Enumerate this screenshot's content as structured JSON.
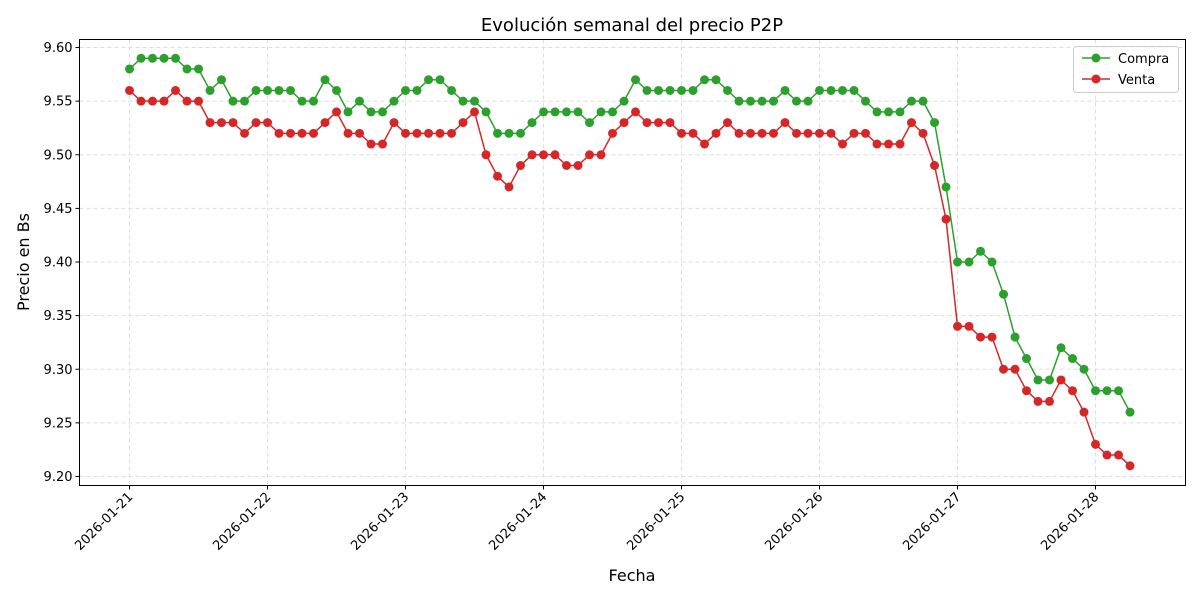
{
  "chart_data": {
    "type": "line",
    "title": "Evolución semanal del precio P2P",
    "xlabel": "Fecha",
    "ylabel": "Precio en Bs",
    "xlim": [
      "2026-01-20 15:18",
      "2026-01-28 15:39"
    ],
    "ylim": [
      9.1916,
      9.6075
    ],
    "grid": true,
    "legend": "top-right",
    "xticks": [
      "2026-01-21",
      "2026-01-22",
      "2026-01-23",
      "2026-01-24",
      "2026-01-25",
      "2026-01-26",
      "2026-01-27",
      "2026-01-28"
    ],
    "yticks": [
      "9.20",
      "9.25",
      "9.30",
      "9.35",
      "9.40",
      "9.45",
      "9.50",
      "9.55",
      "9.60"
    ],
    "x": [
      "2026-01-21 00:00",
      "2026-01-21 02:00",
      "2026-01-21 04:00",
      "2026-01-21 06:00",
      "2026-01-21 08:00",
      "2026-01-21 10:00",
      "2026-01-21 12:00",
      "2026-01-21 14:00",
      "2026-01-21 16:00",
      "2026-01-21 18:00",
      "2026-01-21 20:00",
      "2026-01-21 22:00",
      "2026-01-22 00:00",
      "2026-01-22 02:00",
      "2026-01-22 04:00",
      "2026-01-22 06:00",
      "2026-01-22 08:00",
      "2026-01-22 10:00",
      "2026-01-22 12:00",
      "2026-01-22 14:00",
      "2026-01-22 16:00",
      "2026-01-22 18:00",
      "2026-01-22 20:00",
      "2026-01-22 22:00",
      "2026-01-23 00:00",
      "2026-01-23 02:00",
      "2026-01-23 04:00",
      "2026-01-23 06:00",
      "2026-01-23 08:00",
      "2026-01-23 10:00",
      "2026-01-23 12:00",
      "2026-01-23 14:00",
      "2026-01-23 16:00",
      "2026-01-23 18:00",
      "2026-01-23 20:00",
      "2026-01-23 22:00",
      "2026-01-24 00:00",
      "2026-01-24 02:00",
      "2026-01-24 04:00",
      "2026-01-24 06:00",
      "2026-01-24 08:00",
      "2026-01-24 10:00",
      "2026-01-24 12:00",
      "2026-01-24 14:00",
      "2026-01-24 16:00",
      "2026-01-24 18:00",
      "2026-01-24 20:00",
      "2026-01-24 22:00",
      "2026-01-25 00:00",
      "2026-01-25 02:00",
      "2026-01-25 04:00",
      "2026-01-25 06:00",
      "2026-01-25 08:00",
      "2026-01-25 10:00",
      "2026-01-25 12:00",
      "2026-01-25 14:00",
      "2026-01-25 16:00",
      "2026-01-25 18:00",
      "2026-01-25 20:00",
      "2026-01-25 22:00",
      "2026-01-26 00:00",
      "2026-01-26 02:00",
      "2026-01-26 04:00",
      "2026-01-26 06:00",
      "2026-01-26 08:00",
      "2026-01-26 10:00",
      "2026-01-26 12:00",
      "2026-01-26 14:00",
      "2026-01-26 16:00",
      "2026-01-26 18:00",
      "2026-01-26 20:00",
      "2026-01-26 22:00",
      "2026-01-27 00:00",
      "2026-01-27 02:00",
      "2026-01-27 04:00",
      "2026-01-27 06:00",
      "2026-01-27 08:00",
      "2026-01-27 10:00",
      "2026-01-27 12:00",
      "2026-01-27 14:00",
      "2026-01-27 16:00",
      "2026-01-27 18:00",
      "2026-01-27 20:00",
      "2026-01-27 22:00",
      "2026-01-28 00:00",
      "2026-01-28 02:00",
      "2026-01-28 04:00",
      "2026-01-28 06:00"
    ],
    "series": [
      {
        "name": "Compra",
        "color": "#2ca02c",
        "values": [
          9.58,
          9.59,
          9.59,
          9.59,
          9.59,
          9.58,
          9.58,
          9.56,
          9.57,
          9.55,
          9.55,
          9.56,
          9.56,
          9.56,
          9.56,
          9.55,
          9.55,
          9.57,
          9.56,
          9.54,
          9.55,
          9.54,
          9.54,
          9.55,
          9.56,
          9.56,
          9.57,
          9.57,
          9.56,
          9.55,
          9.55,
          9.54,
          9.52,
          9.52,
          9.52,
          9.53,
          9.54,
          9.54,
          9.54,
          9.54,
          9.53,
          9.54,
          9.54,
          9.55,
          9.57,
          9.56,
          9.56,
          9.56,
          9.56,
          9.56,
          9.57,
          9.57,
          9.56,
          9.55,
          9.55,
          9.55,
          9.55,
          9.56,
          9.55,
          9.55,
          9.56,
          9.56,
          9.56,
          9.56,
          9.55,
          9.54,
          9.54,
          9.54,
          9.55,
          9.55,
          9.53,
          9.47,
          9.4,
          9.4,
          9.41,
          9.4,
          9.37,
          9.33,
          9.31,
          9.29,
          9.29,
          9.32,
          9.31,
          9.3,
          9.28,
          9.28,
          9.28,
          9.26
        ]
      },
      {
        "name": "Venta",
        "color": "#d62728",
        "values": [
          9.56,
          9.55,
          9.55,
          9.55,
          9.56,
          9.55,
          9.55,
          9.53,
          9.53,
          9.53,
          9.52,
          9.53,
          9.53,
          9.52,
          9.52,
          9.52,
          9.52,
          9.53,
          9.54,
          9.52,
          9.52,
          9.51,
          9.51,
          9.53,
          9.52,
          9.52,
          9.52,
          9.52,
          9.52,
          9.53,
          9.54,
          9.5,
          9.48,
          9.47,
          9.49,
          9.5,
          9.5,
          9.5,
          9.49,
          9.49,
          9.5,
          9.5,
          9.52,
          9.53,
          9.54,
          9.53,
          9.53,
          9.53,
          9.52,
          9.52,
          9.51,
          9.52,
          9.53,
          9.52,
          9.52,
          9.52,
          9.52,
          9.53,
          9.52,
          9.52,
          9.52,
          9.52,
          9.51,
          9.52,
          9.52,
          9.51,
          9.51,
          9.51,
          9.53,
          9.52,
          9.49,
          9.44,
          9.34,
          9.34,
          9.33,
          9.33,
          9.3,
          9.3,
          9.28,
          9.27,
          9.27,
          9.29,
          9.28,
          9.26,
          9.23,
          9.22,
          9.22,
          9.21
        ]
      }
    ]
  }
}
